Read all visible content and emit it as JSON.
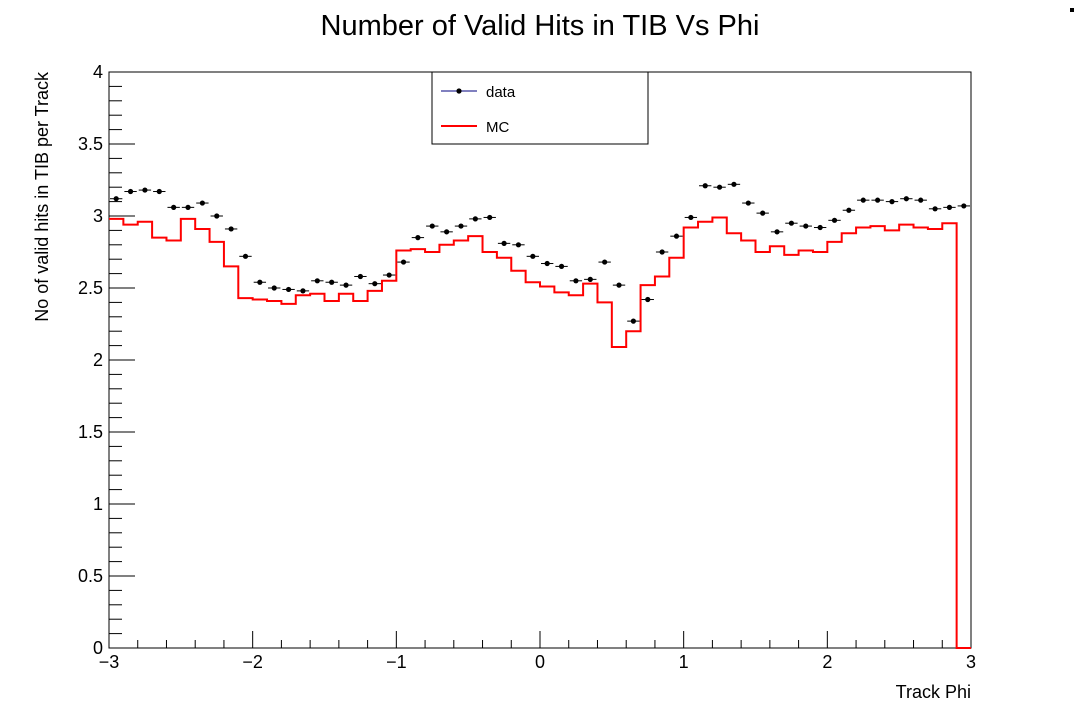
{
  "chart_data": {
    "type": "line",
    "title": "Number of Valid Hits in TIB Vs Phi",
    "xlabel": "Track Phi",
    "ylabel": "No of valid hits in TIB per Track",
    "xlim": [
      -3,
      3
    ],
    "ylim": [
      0,
      4
    ],
    "x_ticks": [
      "−3",
      "−2",
      "−1",
      "0",
      "1",
      "2",
      "3"
    ],
    "y_ticks": [
      "0",
      "0.5",
      "1",
      "1.5",
      "2",
      "2.5",
      "3",
      "3.5",
      "4"
    ],
    "grid": false,
    "legend_position": "top-center",
    "bin_width": 0.1,
    "x": [
      -2.95,
      -2.85,
      -2.75,
      -2.65,
      -2.55,
      -2.45,
      -2.35,
      -2.25,
      -2.15,
      -2.05,
      -1.95,
      -1.85,
      -1.75,
      -1.65,
      -1.55,
      -1.45,
      -1.35,
      -1.25,
      -1.15,
      -1.05,
      -0.95,
      -0.85,
      -0.75,
      -0.65,
      -0.55,
      -0.45,
      -0.35,
      -0.25,
      -0.15,
      -0.05,
      0.05,
      0.15,
      0.25,
      0.35,
      0.45,
      0.55,
      0.65,
      0.75,
      0.85,
      0.95,
      1.05,
      1.15,
      1.25,
      1.35,
      1.45,
      1.55,
      1.65,
      1.75,
      1.85,
      1.95,
      2.05,
      2.15,
      2.25,
      2.35,
      2.45,
      2.55,
      2.65,
      2.75,
      2.85,
      2.95
    ],
    "series": [
      {
        "name": "data",
        "style": "markers",
        "color": "#000000",
        "legend_line_color": "#00007f",
        "values": [
          3.12,
          3.17,
          3.18,
          3.17,
          3.06,
          3.06,
          3.09,
          3.0,
          2.91,
          2.72,
          2.54,
          2.5,
          2.49,
          2.48,
          2.55,
          2.54,
          2.52,
          2.58,
          2.53,
          2.59,
          2.68,
          2.85,
          2.93,
          2.89,
          2.93,
          2.98,
          2.99,
          2.81,
          2.8,
          2.72,
          2.67,
          2.65,
          2.55,
          2.56,
          2.68,
          2.52,
          2.27,
          2.42,
          2.75,
          2.86,
          2.99,
          3.21,
          3.2,
          3.22,
          3.09,
          3.02,
          2.89,
          2.95,
          2.93,
          2.92,
          2.97,
          3.04,
          3.11,
          3.11,
          3.1,
          3.12,
          3.11,
          3.05,
          3.06,
          3.07
        ]
      },
      {
        "name": "MC",
        "style": "step",
        "color": "#ff0000",
        "values": [
          2.98,
          2.94,
          2.96,
          2.85,
          2.83,
          2.98,
          2.91,
          2.82,
          2.65,
          2.43,
          2.42,
          2.41,
          2.39,
          2.45,
          2.46,
          2.41,
          2.46,
          2.41,
          2.48,
          2.55,
          2.76,
          2.77,
          2.75,
          2.8,
          2.83,
          2.86,
          2.75,
          2.71,
          2.62,
          2.54,
          2.51,
          2.47,
          2.45,
          2.53,
          2.4,
          2.09,
          2.2,
          2.52,
          2.58,
          2.71,
          2.92,
          2.96,
          2.99,
          2.88,
          2.83,
          2.75,
          2.79,
          2.73,
          2.76,
          2.75,
          2.82,
          2.88,
          2.92,
          2.93,
          2.9,
          2.94,
          2.92,
          2.91,
          2.95,
          0.0
        ]
      }
    ]
  },
  "colors": {
    "frame": "#000000",
    "data_marker": "#000000",
    "data_legend_line": "#00007f",
    "mc_line": "#ff0000"
  }
}
